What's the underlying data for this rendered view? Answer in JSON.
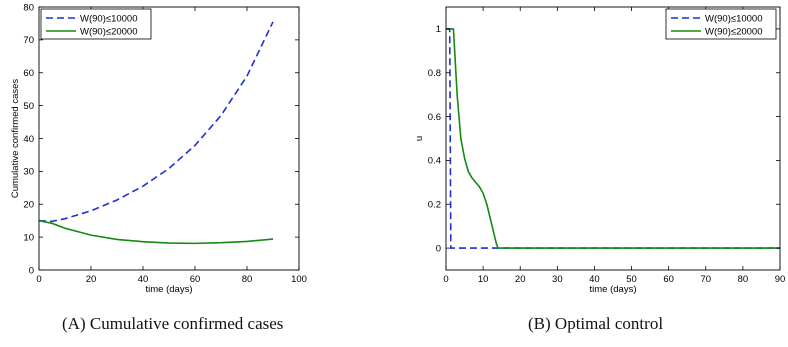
{
  "chart_data": [
    {
      "type": "line",
      "subcaption_tag": "(A)",
      "caption": "Cumulative confirmed cases",
      "xlabel": "time (days)",
      "ylabel": "Cumulative confirmed cases",
      "xlim": [
        0,
        100
      ],
      "ylim": [
        0,
        80
      ],
      "xticks": [
        0,
        20,
        40,
        60,
        80,
        100
      ],
      "yticks": [
        0,
        10,
        20,
        30,
        40,
        50,
        60,
        70,
        80
      ],
      "grid": false,
      "legend_position": "top-left",
      "series": [
        {
          "name": "W(90)≤10000",
          "color": "#1f2fd6",
          "dash": "dashed",
          "x": [
            0,
            5,
            10,
            20,
            30,
            40,
            50,
            60,
            70,
            80,
            90
          ],
          "y": [
            15,
            14.8,
            15.6,
            18.0,
            21.3,
            25.5,
            30.9,
            37.9,
            47.0,
            59.0,
            75.5
          ]
        },
        {
          "name": "W(90)≤20000",
          "color": "#138a13",
          "dash": "solid",
          "x": [
            0,
            5,
            10,
            20,
            30,
            40,
            50,
            60,
            70,
            80,
            90
          ],
          "y": [
            15,
            14.2,
            12.7,
            10.6,
            9.3,
            8.6,
            8.2,
            8.1,
            8.3,
            8.7,
            9.4
          ]
        }
      ]
    },
    {
      "type": "line",
      "subcaption_tag": "(B)",
      "caption": "Optimal control",
      "xlabel": "time (days)",
      "ylabel": "u",
      "xlim": [
        0,
        90
      ],
      "ylim": [
        -0.1,
        1.1
      ],
      "xticks": [
        0,
        10,
        20,
        30,
        40,
        50,
        60,
        70,
        80,
        90
      ],
      "yticks": [
        0,
        0.2,
        0.4,
        0.6,
        0.8,
        1
      ],
      "grid": false,
      "legend_position": "top-right",
      "series": [
        {
          "name": "W(90)≤10000",
          "color": "#1f2fd6",
          "dash": "dashed",
          "x": [
            0,
            1,
            1.3,
            90
          ],
          "y": [
            1,
            1,
            0,
            0
          ]
        },
        {
          "name": "W(90)≤20000",
          "color": "#138a13",
          "dash": "solid",
          "x": [
            0,
            2,
            3,
            4,
            5,
            6,
            7,
            8,
            9,
            10,
            11,
            12,
            13,
            13.5,
            14,
            90
          ],
          "y": [
            1,
            1,
            0.7,
            0.5,
            0.41,
            0.35,
            0.32,
            0.3,
            0.28,
            0.25,
            0.2,
            0.13,
            0.06,
            0.025,
            0,
            0
          ]
        }
      ]
    }
  ]
}
